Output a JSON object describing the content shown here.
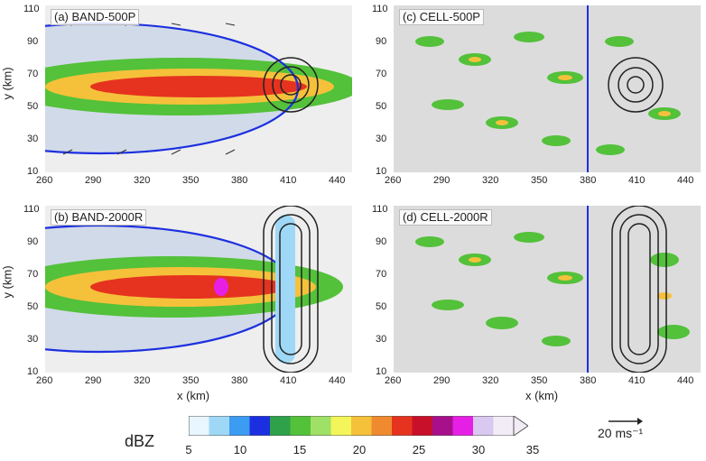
{
  "panels": [
    {
      "id": "a",
      "title": "(a) BAND-500P"
    },
    {
      "id": "b",
      "title": "(b) BAND-2000R"
    },
    {
      "id": "c",
      "title": "(c) CELL-500P"
    },
    {
      "id": "d",
      "title": "(d) CELL-2000R"
    }
  ],
  "axes": {
    "y_label": "y (km)",
    "x_label": "x (km)",
    "x_ticks": [
      "260",
      "290",
      "320",
      "350",
      "380",
      "410",
      "440"
    ],
    "y_ticks": [
      "110",
      "90",
      "70",
      "50",
      "30",
      "10"
    ]
  },
  "colorbar": {
    "label": "dBZ",
    "ticks": [
      "5",
      "10",
      "15",
      "20",
      "25",
      "30",
      "35"
    ],
    "colors": [
      "#e8f6ff",
      "#9fd8f7",
      "#3b9cf2",
      "#1c2fe0",
      "#2ea14a",
      "#53c13a",
      "#9fe066",
      "#f3f55a",
      "#f5c13a",
      "#f08a2f",
      "#e5331f",
      "#c8102a",
      "#a7108a",
      "#e61fe6",
      "#d9c8ef",
      "#f2ecf7"
    ]
  },
  "vector_key": {
    "label": "20 ms⁻¹"
  }
}
